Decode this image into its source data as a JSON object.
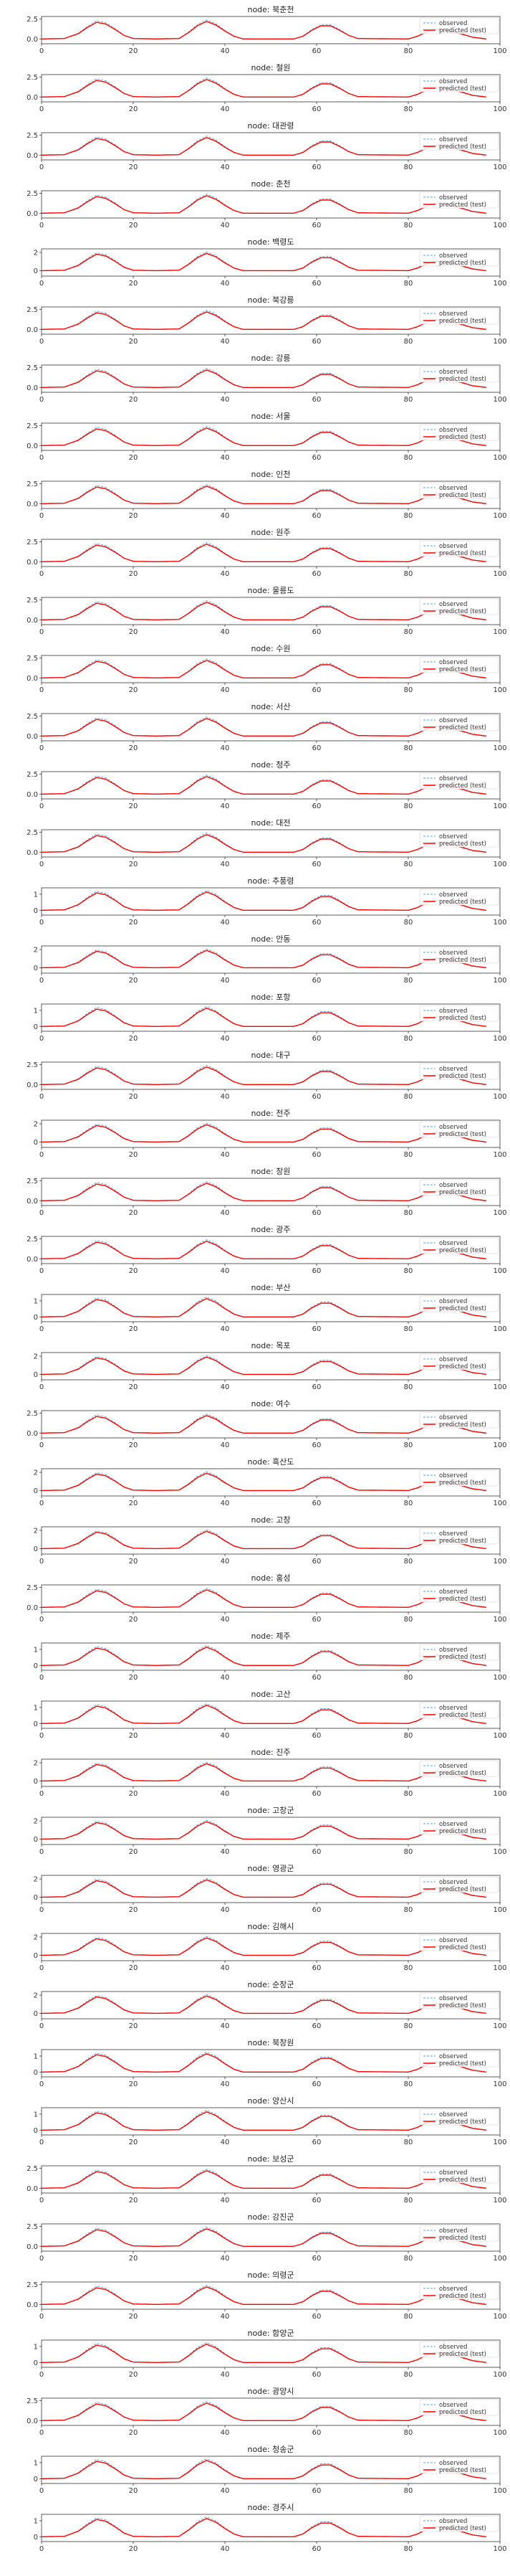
{
  "figure": {
    "title": ""
  },
  "chart_data": {
    "type": "line",
    "x_range": [
      0,
      100
    ],
    "x_ticks": [
      0,
      20,
      40,
      60,
      80,
      100
    ],
    "legend": {
      "position": "top-right",
      "entries": [
        "observed",
        "predicted (test)"
      ]
    },
    "colors": {
      "observed": "#5aa0d8",
      "predicted": "#ff0000"
    },
    "title_prefix": "node: ",
    "shape_profile": [
      [
        0,
        0
      ],
      [
        5,
        0.05
      ],
      [
        8,
        0.6
      ],
      [
        10,
        1.3
      ],
      [
        12,
        1.9
      ],
      [
        14,
        1.7
      ],
      [
        16,
        1.1
      ],
      [
        18,
        0.4
      ],
      [
        20,
        0.05
      ],
      [
        25,
        0
      ],
      [
        30,
        0.05
      ],
      [
        32,
        0.7
      ],
      [
        34,
        1.5
      ],
      [
        36,
        2.0
      ],
      [
        38,
        1.6
      ],
      [
        40,
        0.9
      ],
      [
        42,
        0.3
      ],
      [
        44,
        0
      ],
      [
        55,
        0
      ],
      [
        57,
        0.3
      ],
      [
        59,
        1.0
      ],
      [
        61,
        1.5
      ],
      [
        63,
        1.5
      ],
      [
        65,
        1.0
      ],
      [
        67,
        0.4
      ],
      [
        69,
        0.05
      ],
      [
        80,
        0
      ],
      [
        82,
        0.3
      ],
      [
        84,
        0.8
      ],
      [
        86,
        1.1
      ],
      [
        88,
        1.0
      ],
      [
        90,
        0.8
      ],
      [
        94,
        0.2
      ],
      [
        97,
        0
      ]
    ],
    "series_scale": [
      0.9,
      1.0
    ],
    "panels": [
      {
        "node": "북춘천",
        "yticks": [
          0.0,
          2.5
        ],
        "ylim": [
          -0.6,
          2.8
        ],
        "peak": 2.3
      },
      {
        "node": "철원",
        "yticks": [
          0.0,
          2.5
        ],
        "ylim": [
          -0.6,
          2.8
        ],
        "peak": 2.3
      },
      {
        "node": "대관령",
        "yticks": [
          0.0,
          2.5
        ],
        "ylim": [
          -0.6,
          2.8
        ],
        "peak": 2.3
      },
      {
        "node": "춘천",
        "yticks": [
          0.0,
          2.5
        ],
        "ylim": [
          -0.6,
          2.8
        ],
        "peak": 2.3
      },
      {
        "node": "백령도",
        "yticks": [
          0,
          2
        ],
        "ylim": [
          -0.6,
          2.4
        ],
        "peak": 2.0
      },
      {
        "node": "북강릉",
        "yticks": [
          0.0,
          2.5
        ],
        "ylim": [
          -0.6,
          2.8
        ],
        "peak": 2.3
      },
      {
        "node": "강릉",
        "yticks": [
          0.0,
          2.5
        ],
        "ylim": [
          -0.6,
          2.8
        ],
        "peak": 2.3
      },
      {
        "node": "서울",
        "yticks": [
          0.0,
          2.5
        ],
        "ylim": [
          -0.6,
          2.8
        ],
        "peak": 2.3
      },
      {
        "node": "인천",
        "yticks": [
          0.0,
          2.5
        ],
        "ylim": [
          -0.6,
          2.8
        ],
        "peak": 2.3
      },
      {
        "node": "원주",
        "yticks": [
          0.0,
          2.5
        ],
        "ylim": [
          -0.6,
          2.8
        ],
        "peak": 2.3
      },
      {
        "node": "울릉도",
        "yticks": [
          0.0,
          2.5
        ],
        "ylim": [
          -0.6,
          2.8
        ],
        "peak": 2.3
      },
      {
        "node": "수원",
        "yticks": [
          0.0,
          2.5
        ],
        "ylim": [
          -0.6,
          2.8
        ],
        "peak": 2.3
      },
      {
        "node": "서산",
        "yticks": [
          0.0,
          2.5
        ],
        "ylim": [
          -0.6,
          2.8
        ],
        "peak": 2.3
      },
      {
        "node": "청주",
        "yticks": [
          0.0,
          2.5
        ],
        "ylim": [
          -0.6,
          2.8
        ],
        "peak": 2.3
      },
      {
        "node": "대전",
        "yticks": [
          0.0,
          2.5
        ],
        "ylim": [
          -0.6,
          2.8
        ],
        "peak": 2.3
      },
      {
        "node": "추풍령",
        "yticks": [
          0,
          1
        ],
        "ylim": [
          -0.3,
          1.4
        ],
        "peak": 1.2
      },
      {
        "node": "안동",
        "yticks": [
          0,
          2
        ],
        "ylim": [
          -0.6,
          2.4
        ],
        "peak": 2.0
      },
      {
        "node": "포항",
        "yticks": [
          0,
          1
        ],
        "ylim": [
          -0.3,
          1.4
        ],
        "peak": 1.2
      },
      {
        "node": "대구",
        "yticks": [
          0.0,
          2.5
        ],
        "ylim": [
          -0.6,
          2.8
        ],
        "peak": 2.3
      },
      {
        "node": "전주",
        "yticks": [
          0,
          2
        ],
        "ylim": [
          -0.6,
          2.4
        ],
        "peak": 2.0
      },
      {
        "node": "창원",
        "yticks": [
          0.0,
          2.5
        ],
        "ylim": [
          -0.6,
          2.8
        ],
        "peak": 2.3
      },
      {
        "node": "광주",
        "yticks": [
          0.0,
          2.5
        ],
        "ylim": [
          -0.6,
          2.8
        ],
        "peak": 2.3
      },
      {
        "node": "부산",
        "yticks": [
          0,
          1
        ],
        "ylim": [
          -0.3,
          1.4
        ],
        "peak": 1.2
      },
      {
        "node": "목포",
        "yticks": [
          0,
          2
        ],
        "ylim": [
          -0.6,
          2.4
        ],
        "peak": 2.0
      },
      {
        "node": "여수",
        "yticks": [
          0.0,
          2.5
        ],
        "ylim": [
          -0.6,
          2.8
        ],
        "peak": 2.3
      },
      {
        "node": "흑산도",
        "yticks": [
          0,
          2
        ],
        "ylim": [
          -0.6,
          2.4
        ],
        "peak": 2.0
      },
      {
        "node": "고창",
        "yticks": [
          0,
          2
        ],
        "ylim": [
          -0.6,
          2.4
        ],
        "peak": 2.0
      },
      {
        "node": "홍성",
        "yticks": [
          0.0,
          2.5
        ],
        "ylim": [
          -0.6,
          2.8
        ],
        "peak": 2.3
      },
      {
        "node": "제주",
        "yticks": [
          0,
          1
        ],
        "ylim": [
          -0.3,
          1.4
        ],
        "peak": 1.2
      },
      {
        "node": "고산",
        "yticks": [
          0,
          1
        ],
        "ylim": [
          -0.3,
          1.4
        ],
        "peak": 1.2
      },
      {
        "node": "진주",
        "yticks": [
          0,
          2
        ],
        "ylim": [
          -0.6,
          2.4
        ],
        "peak": 2.0
      },
      {
        "node": "고창군",
        "yticks": [
          0,
          2
        ],
        "ylim": [
          -0.6,
          2.4
        ],
        "peak": 2.0
      },
      {
        "node": "영광군",
        "yticks": [
          0,
          2
        ],
        "ylim": [
          -0.6,
          2.4
        ],
        "peak": 2.0
      },
      {
        "node": "김해시",
        "yticks": [
          0,
          2
        ],
        "ylim": [
          -0.6,
          2.4
        ],
        "peak": 2.0
      },
      {
        "node": "순창군",
        "yticks": [
          0,
          2
        ],
        "ylim": [
          -0.6,
          2.4
        ],
        "peak": 2.0
      },
      {
        "node": "북창원",
        "yticks": [
          0,
          1
        ],
        "ylim": [
          -0.3,
          1.4
        ],
        "peak": 1.2
      },
      {
        "node": "양산시",
        "yticks": [
          0,
          1
        ],
        "ylim": [
          -0.3,
          1.4
        ],
        "peak": 1.2
      },
      {
        "node": "보성군",
        "yticks": [
          0.0,
          2.5
        ],
        "ylim": [
          -0.6,
          2.8
        ],
        "peak": 2.3
      },
      {
        "node": "강진군",
        "yticks": [
          0.0,
          2.5
        ],
        "ylim": [
          -0.6,
          2.8
        ],
        "peak": 2.3
      },
      {
        "node": "의령군",
        "yticks": [
          0.0,
          2.5
        ],
        "ylim": [
          -0.6,
          2.8
        ],
        "peak": 2.3
      },
      {
        "node": "함양군",
        "yticks": [
          0,
          1
        ],
        "ylim": [
          -0.3,
          1.4
        ],
        "peak": 1.2
      },
      {
        "node": "광양시",
        "yticks": [
          0.0,
          2.5
        ],
        "ylim": [
          -0.6,
          2.8
        ],
        "peak": 2.3
      },
      {
        "node": "청송군",
        "yticks": [
          0,
          1
        ],
        "ylim": [
          -0.3,
          1.4
        ],
        "peak": 1.2
      },
      {
        "node": "경주시",
        "yticks": [
          0,
          1
        ],
        "ylim": [
          -0.3,
          1.4
        ],
        "peak": 1.2
      }
    ]
  }
}
